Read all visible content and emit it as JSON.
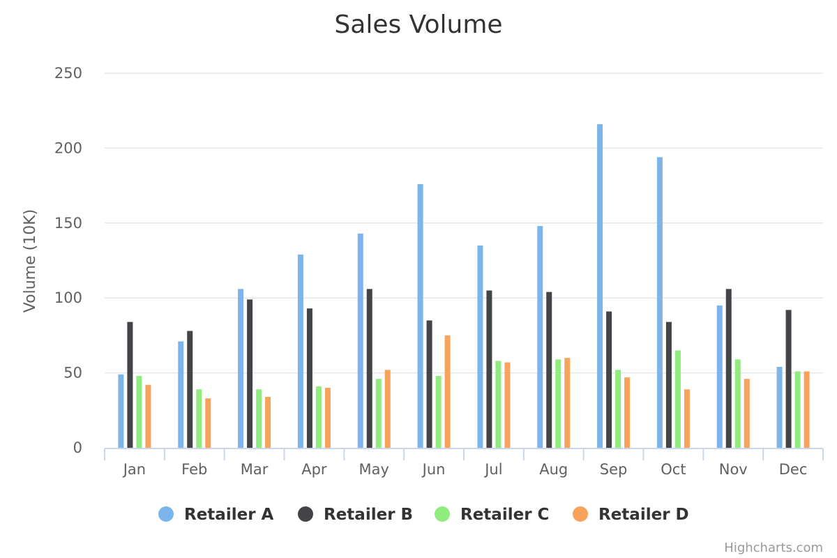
{
  "chart_data": {
    "type": "bar",
    "title": "Sales Volume",
    "ylabel": "Volume (10K)",
    "ylim": [
      0,
      250
    ],
    "yticks": [
      0,
      50,
      100,
      150,
      200,
      250
    ],
    "grid": true,
    "legend_position": "bottom",
    "categories": [
      "Jan",
      "Feb",
      "Mar",
      "Apr",
      "May",
      "Jun",
      "Jul",
      "Aug",
      "Sep",
      "Oct",
      "Nov",
      "Dec"
    ],
    "series": [
      {
        "name": "Retailer A",
        "color": "#7cb5ec",
        "values": [
          49,
          71,
          106,
          129,
          143,
          176,
          135,
          148,
          216,
          194,
          95,
          54
        ]
      },
      {
        "name": "Retailer B",
        "color": "#434348",
        "values": [
          84,
          78,
          99,
          93,
          106,
          85,
          105,
          104,
          91,
          84,
          106,
          92
        ]
      },
      {
        "name": "Retailer C",
        "color": "#90ed7d",
        "values": [
          48,
          39,
          39,
          41,
          46,
          48,
          58,
          59,
          52,
          65,
          59,
          51
        ]
      },
      {
        "name": "Retailer D",
        "color": "#f7a35c",
        "values": [
          42,
          33,
          34,
          40,
          52,
          75,
          57,
          60,
          47,
          39,
          46,
          51
        ]
      }
    ],
    "credits": "Highcharts.com"
  }
}
